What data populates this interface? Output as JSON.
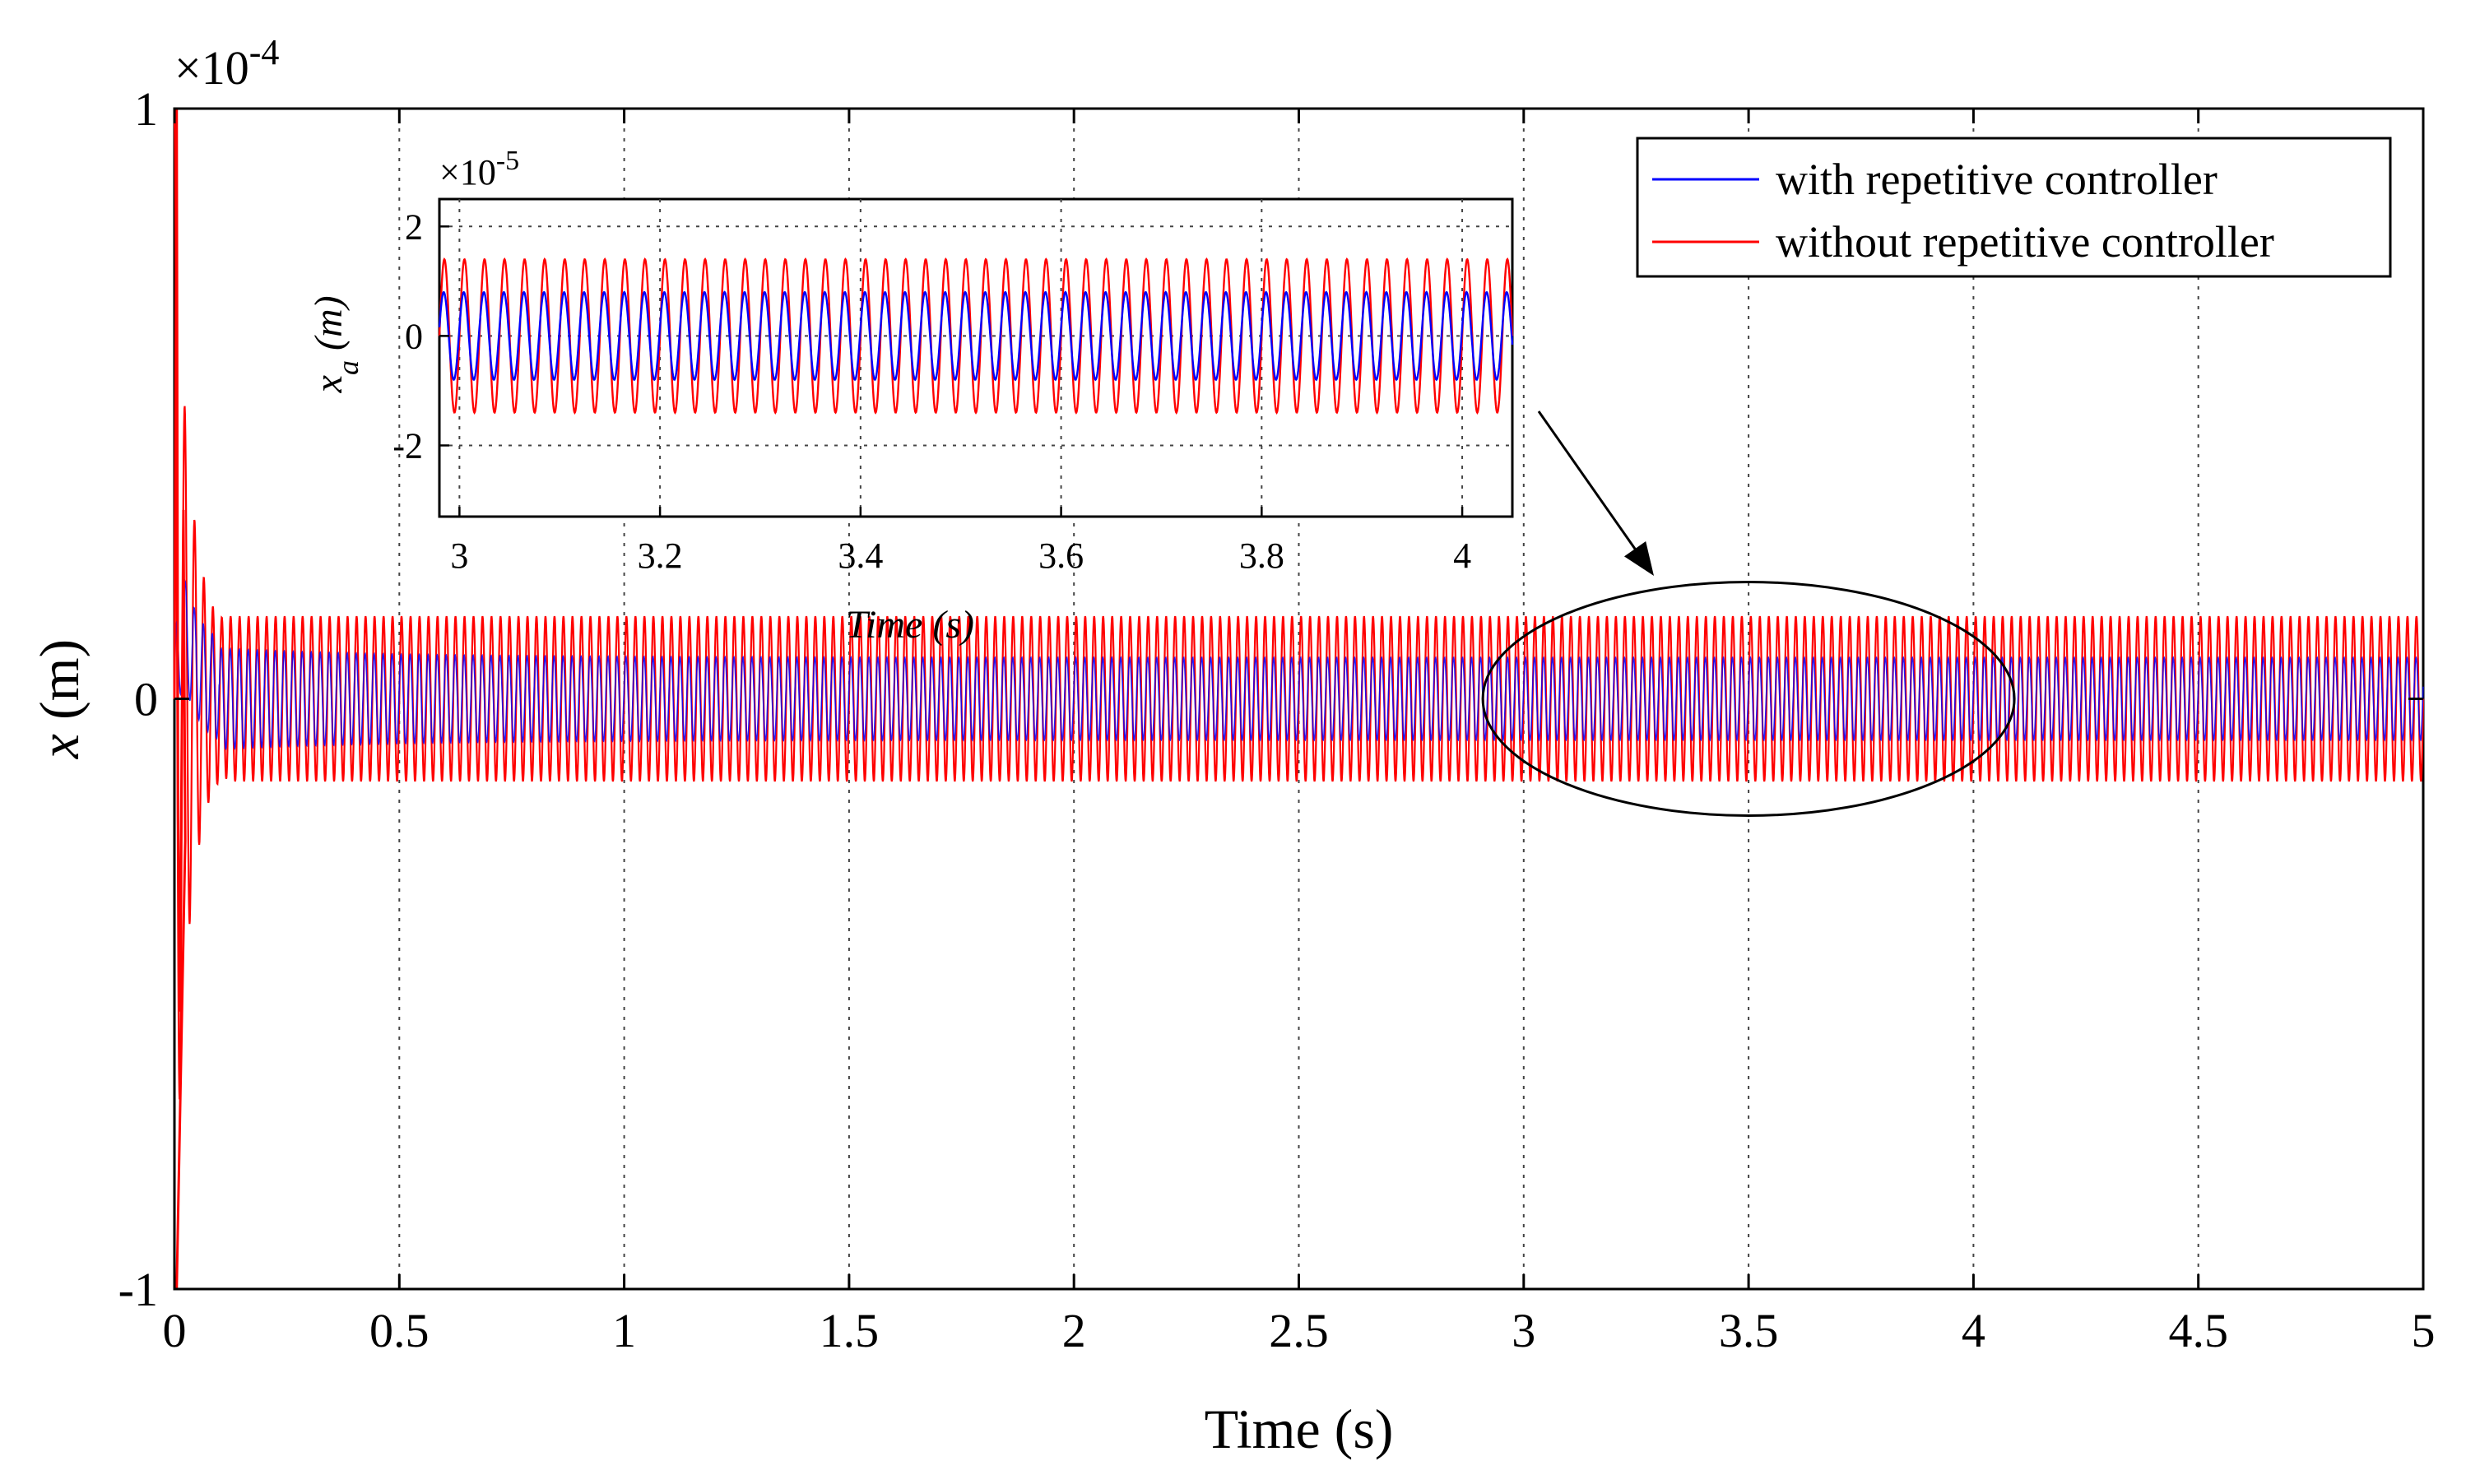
{
  "chart_data": {
    "type": "line",
    "main": {
      "xlabel": "Time (s)",
      "ylabel_var": "x",
      "ylabel_unit": " (m)",
      "xlim": [
        0,
        5
      ],
      "ylim": [
        -1,
        1
      ],
      "y_exponent_label": "×10",
      "y_exponent_power": "-4",
      "xticks": [
        0,
        0.5,
        1,
        1.5,
        2,
        2.5,
        3,
        3.5,
        4,
        4.5,
        5
      ],
      "xtick_labels": [
        "0",
        "0.5",
        "1",
        "1.5",
        "2",
        "2.5",
        "3",
        "3.5",
        "4",
        "4.5",
        "5"
      ],
      "yticks": [
        -1,
        0,
        1
      ],
      "ytick_labels": [
        "-1",
        "0",
        "1"
      ],
      "grid": "x-vertical-dotted"
    },
    "series": [
      {
        "name": "with repetitive controller",
        "color": "#0000ff",
        "description": "Sinusoidal response decaying from ~0.2 to steady amplitude ~0.07 (x10^-4) over 0-5 s",
        "steady_amplitude": 0.07,
        "transient_peak": 0.2
      },
      {
        "name": "without repetitive controller",
        "color": "#ff0000",
        "description": "Initial spike to +1/-1 (x10^-4) then steady sinusoidal oscillation amplitude ~0.14",
        "steady_amplitude": 0.14,
        "initial_peak": 1.0,
        "initial_trough": -1.0
      }
    ],
    "legend": {
      "position": "top-right",
      "entries": [
        "with repetitive controller",
        "without repetitive controller"
      ]
    },
    "inset": {
      "xlabel": "Time (s)",
      "ylabel_var": "x",
      "ylabel_sub": "a",
      "ylabel_unit": " (m)",
      "xlim": [
        2.98,
        4.05
      ],
      "ylim": [
        -3.3,
        2.5
      ],
      "y_exponent_label": "×10",
      "y_exponent_power": "-5",
      "xticks": [
        3,
        3.2,
        3.4,
        3.6,
        3.8,
        4
      ],
      "xtick_labels": [
        "3",
        "3.2",
        "3.4",
        "3.6",
        "3.8",
        "4"
      ],
      "yticks": [
        -2,
        0,
        2
      ],
      "ytick_labels": [
        "-2",
        "0",
        "2"
      ],
      "blue_amplitude": 0.8,
      "red_amplitude": 1.4,
      "frequency_hz": 50
    },
    "annotation": {
      "type": "ellipse-with-arrow",
      "center_x": 3.5,
      "center_y": 0,
      "note": "zoom region 2.9-4.1 s shown in inset"
    }
  }
}
